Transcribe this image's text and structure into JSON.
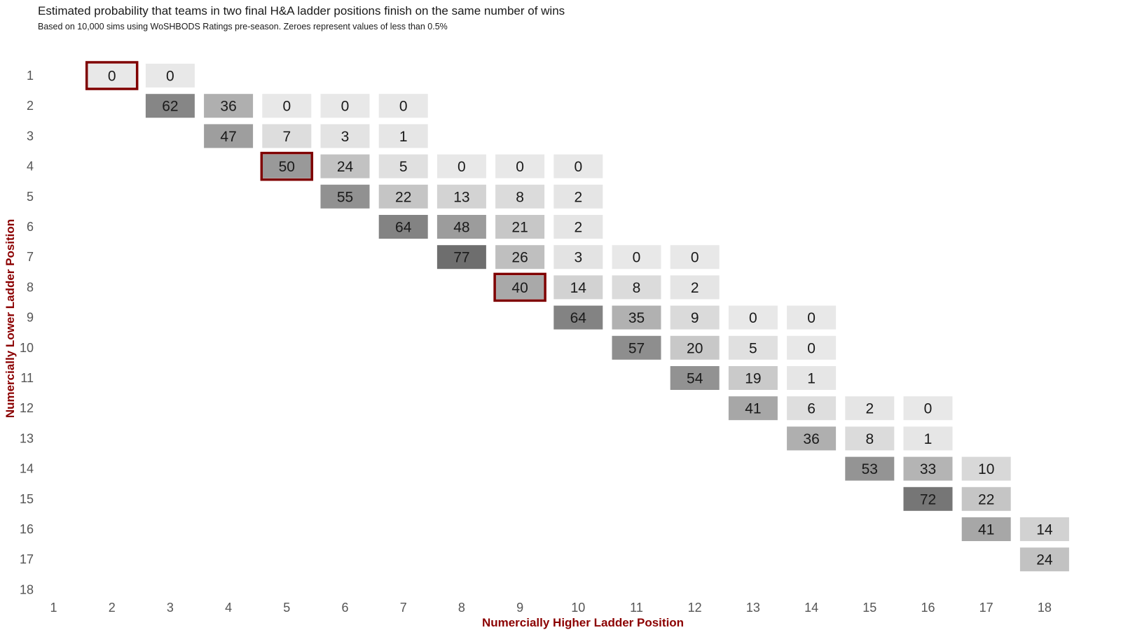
{
  "chart_data": {
    "type": "heatmap",
    "title": "Estimated probability that teams in two final H&A ladder positions finish on the same number of wins",
    "subtitle": "Based on 10,000 sims using WoSHBODS Ratings pre-season. Zeroes represent values of less than 0.5%",
    "xlabel": "Numercially Higher Ladder Position",
    "ylabel": "Numercially Lower Ladder Position",
    "x_ticks": [
      "1",
      "2",
      "3",
      "4",
      "5",
      "6",
      "7",
      "8",
      "9",
      "10",
      "11",
      "12",
      "13",
      "14",
      "15",
      "16",
      "17",
      "18"
    ],
    "y_ticks": [
      "1",
      "2",
      "3",
      "4",
      "5",
      "6",
      "7",
      "8",
      "9",
      "10",
      "11",
      "12",
      "13",
      "14",
      "15",
      "16",
      "17",
      "18"
    ],
    "cells": [
      {
        "x": 2,
        "y": 1,
        "value": 0
      },
      {
        "x": 3,
        "y": 1,
        "value": 0
      },
      {
        "x": 3,
        "y": 2,
        "value": 62
      },
      {
        "x": 4,
        "y": 2,
        "value": 36
      },
      {
        "x": 5,
        "y": 2,
        "value": 0
      },
      {
        "x": 6,
        "y": 2,
        "value": 0
      },
      {
        "x": 7,
        "y": 2,
        "value": 0
      },
      {
        "x": 4,
        "y": 3,
        "value": 47
      },
      {
        "x": 5,
        "y": 3,
        "value": 7
      },
      {
        "x": 6,
        "y": 3,
        "value": 3
      },
      {
        "x": 7,
        "y": 3,
        "value": 1
      },
      {
        "x": 5,
        "y": 4,
        "value": 50
      },
      {
        "x": 6,
        "y": 4,
        "value": 24
      },
      {
        "x": 7,
        "y": 4,
        "value": 5
      },
      {
        "x": 8,
        "y": 4,
        "value": 0
      },
      {
        "x": 9,
        "y": 4,
        "value": 0
      },
      {
        "x": 10,
        "y": 4,
        "value": 0
      },
      {
        "x": 6,
        "y": 5,
        "value": 55
      },
      {
        "x": 7,
        "y": 5,
        "value": 22
      },
      {
        "x": 8,
        "y": 5,
        "value": 13
      },
      {
        "x": 9,
        "y": 5,
        "value": 8
      },
      {
        "x": 10,
        "y": 5,
        "value": 2
      },
      {
        "x": 7,
        "y": 6,
        "value": 64
      },
      {
        "x": 8,
        "y": 6,
        "value": 48
      },
      {
        "x": 9,
        "y": 6,
        "value": 21
      },
      {
        "x": 10,
        "y": 6,
        "value": 2
      },
      {
        "x": 8,
        "y": 7,
        "value": 77
      },
      {
        "x": 9,
        "y": 7,
        "value": 26
      },
      {
        "x": 10,
        "y": 7,
        "value": 3
      },
      {
        "x": 11,
        "y": 7,
        "value": 0
      },
      {
        "x": 12,
        "y": 7,
        "value": 0
      },
      {
        "x": 9,
        "y": 8,
        "value": 40
      },
      {
        "x": 10,
        "y": 8,
        "value": 14
      },
      {
        "x": 11,
        "y": 8,
        "value": 8
      },
      {
        "x": 12,
        "y": 8,
        "value": 2
      },
      {
        "x": 10,
        "y": 9,
        "value": 64
      },
      {
        "x": 11,
        "y": 9,
        "value": 35
      },
      {
        "x": 12,
        "y": 9,
        "value": 9
      },
      {
        "x": 13,
        "y": 9,
        "value": 0
      },
      {
        "x": 14,
        "y": 9,
        "value": 0
      },
      {
        "x": 11,
        "y": 10,
        "value": 57
      },
      {
        "x": 12,
        "y": 10,
        "value": 20
      },
      {
        "x": 13,
        "y": 10,
        "value": 5
      },
      {
        "x": 14,
        "y": 10,
        "value": 0
      },
      {
        "x": 12,
        "y": 11,
        "value": 54
      },
      {
        "x": 13,
        "y": 11,
        "value": 19
      },
      {
        "x": 14,
        "y": 11,
        "value": 1
      },
      {
        "x": 13,
        "y": 12,
        "value": 41
      },
      {
        "x": 14,
        "y": 12,
        "value": 6
      },
      {
        "x": 15,
        "y": 12,
        "value": 2
      },
      {
        "x": 16,
        "y": 12,
        "value": 0
      },
      {
        "x": 14,
        "y": 13,
        "value": 36
      },
      {
        "x": 15,
        "y": 13,
        "value": 8
      },
      {
        "x": 16,
        "y": 13,
        "value": 1
      },
      {
        "x": 15,
        "y": 14,
        "value": 53
      },
      {
        "x": 16,
        "y": 14,
        "value": 33
      },
      {
        "x": 17,
        "y": 14,
        "value": 10
      },
      {
        "x": 16,
        "y": 15,
        "value": 72
      },
      {
        "x": 17,
        "y": 15,
        "value": 22
      },
      {
        "x": 17,
        "y": 16,
        "value": 41
      },
      {
        "x": 18,
        "y": 16,
        "value": 14
      },
      {
        "x": 18,
        "y": 17,
        "value": 24
      }
    ],
    "highlighted": [
      {
        "x": 2,
        "y": 1
      },
      {
        "x": 5,
        "y": 4
      },
      {
        "x": 9,
        "y": 8
      }
    ],
    "color_scale": {
      "low": "#e8e8e8",
      "high": "#6e6e6e"
    },
    "highlight_color": "#7f0000",
    "axis_title_color": "#8b0000",
    "grid": false,
    "legend": "none"
  }
}
